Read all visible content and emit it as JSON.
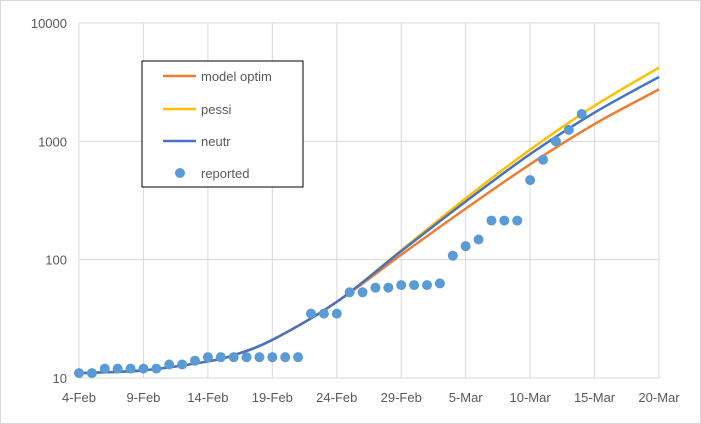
{
  "chart_data": {
    "type": "line",
    "title": "",
    "xlabel": "",
    "ylabel": "",
    "y_scale": "log",
    "ylim": [
      10,
      10000
    ],
    "xlim": [
      "2020-02-04",
      "2020-03-20"
    ],
    "x_ticks": [
      "4-Feb",
      "9-Feb",
      "14-Feb",
      "19-Feb",
      "24-Feb",
      "29-Feb",
      "5-Mar",
      "10-Mar",
      "15-Mar",
      "20-Mar"
    ],
    "y_ticks": [
      "10",
      "100",
      "1000",
      "10000"
    ],
    "grid": "horizontal and vertical",
    "legend_position": "upper-left inside plot",
    "series": [
      {
        "name": "model optim",
        "kind": "line",
        "color": "#ED7D31",
        "x": [
          "2020-02-04",
          "2020-02-09",
          "2020-02-14",
          "2020-02-16",
          "2020-02-19",
          "2020-02-24",
          "2020-02-29",
          "2020-03-05",
          "2020-03-10",
          "2020-03-15",
          "2020-03-20"
        ],
        "y": [
          11,
          11.6,
          13.8,
          15.6,
          21,
          44,
          110,
          270,
          640,
          1400,
          2750
        ]
      },
      {
        "name": "pessi",
        "kind": "line",
        "color": "#FFC000",
        "x": [
          "2020-02-04",
          "2020-02-09",
          "2020-02-14",
          "2020-02-16",
          "2020-02-19",
          "2020-02-24",
          "2020-02-29",
          "2020-03-05",
          "2020-03-10",
          "2020-03-15",
          "2020-03-20"
        ],
        "y": [
          11,
          11.6,
          13.8,
          15.6,
          21,
          44,
          120,
          330,
          850,
          2000,
          4200
        ]
      },
      {
        "name": "neutr",
        "kind": "line",
        "color": "#4472C4",
        "x": [
          "2020-02-04",
          "2020-02-09",
          "2020-02-14",
          "2020-02-16",
          "2020-02-19",
          "2020-02-24",
          "2020-02-29",
          "2020-03-05",
          "2020-03-10",
          "2020-03-15",
          "2020-03-20"
        ],
        "y": [
          11,
          11.6,
          13.8,
          15.6,
          21,
          44,
          118,
          310,
          780,
          1750,
          3500
        ]
      },
      {
        "name": "reported",
        "kind": "scatter",
        "color": "#5B9BD5",
        "x": [
          "2020-02-04",
          "2020-02-05",
          "2020-02-06",
          "2020-02-07",
          "2020-02-08",
          "2020-02-09",
          "2020-02-10",
          "2020-02-11",
          "2020-02-12",
          "2020-02-13",
          "2020-02-14",
          "2020-02-15",
          "2020-02-16",
          "2020-02-17",
          "2020-02-18",
          "2020-02-19",
          "2020-02-20",
          "2020-02-21",
          "2020-02-22",
          "2020-02-23",
          "2020-02-24",
          "2020-02-25",
          "2020-02-26",
          "2020-02-27",
          "2020-02-28",
          "2020-02-29",
          "2020-03-01",
          "2020-03-02",
          "2020-03-03",
          "2020-03-04",
          "2020-03-05",
          "2020-03-06",
          "2020-03-07",
          "2020-03-08",
          "2020-03-09",
          "2020-03-10",
          "2020-03-11",
          "2020-03-12",
          "2020-03-13",
          "2020-03-14"
        ],
        "y": [
          11,
          11,
          12,
          12,
          12,
          12,
          12,
          13,
          13,
          14,
          15,
          15,
          15,
          15,
          15,
          15,
          15,
          15,
          35,
          35,
          35,
          53,
          53,
          58,
          58,
          61,
          61,
          61,
          63,
          108,
          130,
          148,
          214,
          214,
          214,
          470,
          700,
          1000,
          1250,
          1700
        ]
      }
    ]
  }
}
